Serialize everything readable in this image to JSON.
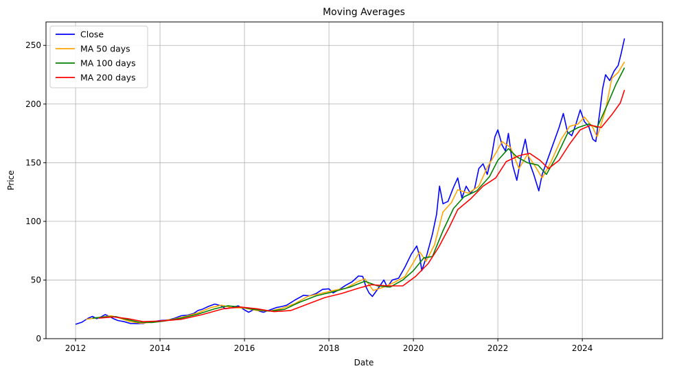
{
  "chart_data": {
    "type": "line",
    "title": "Moving Averages",
    "xlabel": "Date",
    "ylabel": "Price",
    "xlim": [
      2011.3,
      2025.9
    ],
    "ylim": [
      0,
      270
    ],
    "x_ticks": [
      2012,
      2014,
      2016,
      2018,
      2020,
      2022,
      2024
    ],
    "y_ticks": [
      0,
      50,
      100,
      150,
      200,
      250
    ],
    "grid": true,
    "legend": "top-left",
    "series": [
      {
        "name": "Close",
        "color": "#0000ff",
        "points": [
          [
            2012.0,
            12.3
          ],
          [
            2012.15,
            14.0
          ],
          [
            2012.3,
            17.5
          ],
          [
            2012.4,
            19.0
          ],
          [
            2012.5,
            17.0
          ],
          [
            2012.6,
            18.5
          ],
          [
            2012.7,
            20.5
          ],
          [
            2012.8,
            19.0
          ],
          [
            2012.9,
            17.0
          ],
          [
            2013.0,
            15.5
          ],
          [
            2013.15,
            14.5
          ],
          [
            2013.3,
            13.0
          ],
          [
            2013.45,
            12.8
          ],
          [
            2013.6,
            13.0
          ],
          [
            2013.75,
            14.5
          ],
          [
            2013.9,
            14.8
          ],
          [
            2014.0,
            15.5
          ],
          [
            2014.2,
            16.0
          ],
          [
            2014.35,
            17.5
          ],
          [
            2014.5,
            19.5
          ],
          [
            2014.65,
            20.0
          ],
          [
            2014.8,
            21.5
          ],
          [
            2014.9,
            24.0
          ],
          [
            2015.0,
            25.0
          ],
          [
            2015.15,
            27.5
          ],
          [
            2015.3,
            29.5
          ],
          [
            2015.45,
            28.0
          ],
          [
            2015.55,
            25.5
          ],
          [
            2015.7,
            26.5
          ],
          [
            2015.85,
            28.0
          ],
          [
            2016.0,
            24.5
          ],
          [
            2016.1,
            22.5
          ],
          [
            2016.25,
            25.5
          ],
          [
            2016.35,
            23.5
          ],
          [
            2016.45,
            22.5
          ],
          [
            2016.6,
            24.5
          ],
          [
            2016.75,
            26.5
          ],
          [
            2016.9,
            27.5
          ],
          [
            2017.0,
            28.5
          ],
          [
            2017.2,
            33.0
          ],
          [
            2017.4,
            37.0
          ],
          [
            2017.55,
            36.5
          ],
          [
            2017.7,
            38.5
          ],
          [
            2017.85,
            42.0
          ],
          [
            2018.0,
            42.5
          ],
          [
            2018.1,
            39.0
          ],
          [
            2018.25,
            42.0
          ],
          [
            2018.4,
            45.5
          ],
          [
            2018.55,
            48.5
          ],
          [
            2018.7,
            53.5
          ],
          [
            2018.8,
            53.0
          ],
          [
            2018.88,
            44.0
          ],
          [
            2018.95,
            39.0
          ],
          [
            2019.03,
            36.0
          ],
          [
            2019.15,
            42.0
          ],
          [
            2019.3,
            50.0
          ],
          [
            2019.38,
            44.0
          ],
          [
            2019.5,
            50.0
          ],
          [
            2019.65,
            51.5
          ],
          [
            2019.8,
            61.0
          ],
          [
            2019.95,
            72.0
          ],
          [
            2020.08,
            79.0
          ],
          [
            2020.15,
            70.0
          ],
          [
            2020.2,
            58.0
          ],
          [
            2020.3,
            69.0
          ],
          [
            2020.45,
            89.0
          ],
          [
            2020.55,
            106.0
          ],
          [
            2020.62,
            130.0
          ],
          [
            2020.7,
            115.0
          ],
          [
            2020.82,
            117.0
          ],
          [
            2020.95,
            129.0
          ],
          [
            2021.05,
            137.0
          ],
          [
            2021.15,
            120.0
          ],
          [
            2021.25,
            130.0
          ],
          [
            2021.35,
            124.0
          ],
          [
            2021.45,
            128.0
          ],
          [
            2021.55,
            145.0
          ],
          [
            2021.65,
            149.0
          ],
          [
            2021.75,
            140.0
          ],
          [
            2021.85,
            155.0
          ],
          [
            2021.93,
            172.0
          ],
          [
            2022.0,
            178.0
          ],
          [
            2022.1,
            165.0
          ],
          [
            2022.18,
            160.0
          ],
          [
            2022.25,
            175.0
          ],
          [
            2022.35,
            148.0
          ],
          [
            2022.45,
            135.0
          ],
          [
            2022.55,
            155.0
          ],
          [
            2022.65,
            170.0
          ],
          [
            2022.75,
            150.0
          ],
          [
            2022.85,
            140.0
          ],
          [
            2022.97,
            126.0
          ],
          [
            2023.05,
            140.0
          ],
          [
            2023.15,
            150.0
          ],
          [
            2023.3,
            165.0
          ],
          [
            2023.45,
            180.0
          ],
          [
            2023.55,
            192.0
          ],
          [
            2023.65,
            176.0
          ],
          [
            2023.75,
            173.0
          ],
          [
            2023.85,
            183.0
          ],
          [
            2023.95,
            195.0
          ],
          [
            2024.05,
            185.0
          ],
          [
            2024.15,
            181.0
          ],
          [
            2024.25,
            170.0
          ],
          [
            2024.32,
            168.0
          ],
          [
            2024.42,
            195.0
          ],
          [
            2024.48,
            213.0
          ],
          [
            2024.55,
            225.0
          ],
          [
            2024.65,
            220.0
          ],
          [
            2024.75,
            228.0
          ],
          [
            2024.85,
            233.0
          ],
          [
            2024.92,
            243.0
          ],
          [
            2025.0,
            256.0
          ]
        ]
      },
      {
        "name": "MA 50 days",
        "color": "#ffa500",
        "points": [
          [
            2012.25,
            16.5
          ],
          [
            2012.45,
            17.5
          ],
          [
            2012.65,
            18.5
          ],
          [
            2012.85,
            19.5
          ],
          [
            2013.05,
            17.5
          ],
          [
            2013.3,
            14.5
          ],
          [
            2013.55,
            13.2
          ],
          [
            2013.8,
            14.0
          ],
          [
            2014.0,
            15.0
          ],
          [
            2014.3,
            16.5
          ],
          [
            2014.6,
            19.0
          ],
          [
            2014.9,
            22.0
          ],
          [
            2015.2,
            26.5
          ],
          [
            2015.45,
            28.5
          ],
          [
            2015.7,
            26.5
          ],
          [
            2016.0,
            26.0
          ],
          [
            2016.3,
            24.0
          ],
          [
            2016.6,
            23.5
          ],
          [
            2016.9,
            26.0
          ],
          [
            2017.2,
            30.0
          ],
          [
            2017.5,
            36.0
          ],
          [
            2017.8,
            38.5
          ],
          [
            2018.1,
            41.0
          ],
          [
            2018.4,
            43.0
          ],
          [
            2018.65,
            48.0
          ],
          [
            2018.85,
            51.0
          ],
          [
            2019.05,
            41.0
          ],
          [
            2019.3,
            44.0
          ],
          [
            2019.55,
            48.0
          ],
          [
            2019.8,
            53.0
          ],
          [
            2020.0,
            65.0
          ],
          [
            2020.15,
            74.0
          ],
          [
            2020.3,
            66.0
          ],
          [
            2020.5,
            80.0
          ],
          [
            2020.7,
            108.0
          ],
          [
            2020.9,
            116.0
          ],
          [
            2021.05,
            127.0
          ],
          [
            2021.3,
            124.0
          ],
          [
            2021.55,
            130.0
          ],
          [
            2021.75,
            146.0
          ],
          [
            2021.95,
            158.0
          ],
          [
            2022.1,
            168.0
          ],
          [
            2022.3,
            163.0
          ],
          [
            2022.5,
            145.0
          ],
          [
            2022.7,
            157.0
          ],
          [
            2022.9,
            146.0
          ],
          [
            2023.05,
            137.0
          ],
          [
            2023.25,
            150.0
          ],
          [
            2023.5,
            170.0
          ],
          [
            2023.7,
            181.0
          ],
          [
            2023.9,
            183.0
          ],
          [
            2024.05,
            189.0
          ],
          [
            2024.25,
            180.0
          ],
          [
            2024.35,
            172.0
          ],
          [
            2024.55,
            195.0
          ],
          [
            2024.7,
            222.0
          ],
          [
            2024.85,
            227.0
          ],
          [
            2025.0,
            236.0
          ]
        ]
      },
      {
        "name": "MA 100 days",
        "color": "#008000",
        "points": [
          [
            2012.4,
            17.5
          ],
          [
            2012.7,
            18.5
          ],
          [
            2012.95,
            18.8
          ],
          [
            2013.2,
            16.5
          ],
          [
            2013.5,
            14.0
          ],
          [
            2013.8,
            13.8
          ],
          [
            2014.1,
            15.0
          ],
          [
            2014.5,
            17.5
          ],
          [
            2014.9,
            21.0
          ],
          [
            2015.3,
            25.5
          ],
          [
            2015.6,
            28.0
          ],
          [
            2015.9,
            27.0
          ],
          [
            2016.2,
            25.0
          ],
          [
            2016.6,
            23.5
          ],
          [
            2016.95,
            25.0
          ],
          [
            2017.3,
            31.0
          ],
          [
            2017.7,
            36.5
          ],
          [
            2018.1,
            40.0
          ],
          [
            2018.5,
            44.0
          ],
          [
            2018.85,
            49.0
          ],
          [
            2019.15,
            45.0
          ],
          [
            2019.45,
            44.0
          ],
          [
            2019.75,
            50.0
          ],
          [
            2020.0,
            58.0
          ],
          [
            2020.25,
            69.0
          ],
          [
            2020.45,
            70.0
          ],
          [
            2020.7,
            92.0
          ],
          [
            2020.95,
            111.0
          ],
          [
            2021.2,
            121.0
          ],
          [
            2021.5,
            126.0
          ],
          [
            2021.8,
            138.0
          ],
          [
            2022.0,
            152.0
          ],
          [
            2022.25,
            162.0
          ],
          [
            2022.45,
            155.0
          ],
          [
            2022.7,
            150.0
          ],
          [
            2022.95,
            148.0
          ],
          [
            2023.15,
            140.0
          ],
          [
            2023.4,
            156.0
          ],
          [
            2023.65,
            175.0
          ],
          [
            2023.9,
            180.0
          ],
          [
            2024.15,
            183.0
          ],
          [
            2024.35,
            180.0
          ],
          [
            2024.6,
            200.0
          ],
          [
            2024.8,
            217.0
          ],
          [
            2025.0,
            231.0
          ]
        ]
      },
      {
        "name": "MA 200 days",
        "color": "#ff0000",
        "points": [
          [
            2012.55,
            17.5
          ],
          [
            2012.9,
            18.5
          ],
          [
            2013.25,
            17.0
          ],
          [
            2013.6,
            14.5
          ],
          [
            2014.0,
            15.0
          ],
          [
            2014.5,
            16.5
          ],
          [
            2015.0,
            20.5
          ],
          [
            2015.5,
            25.5
          ],
          [
            2015.9,
            27.0
          ],
          [
            2016.3,
            25.5
          ],
          [
            2016.7,
            23.0
          ],
          [
            2017.1,
            24.0
          ],
          [
            2017.5,
            29.5
          ],
          [
            2017.9,
            35.0
          ],
          [
            2018.3,
            38.5
          ],
          [
            2018.7,
            43.0
          ],
          [
            2019.0,
            46.0
          ],
          [
            2019.4,
            45.0
          ],
          [
            2019.75,
            45.0
          ],
          [
            2020.05,
            53.0
          ],
          [
            2020.35,
            64.0
          ],
          [
            2020.6,
            78.0
          ],
          [
            2020.85,
            95.0
          ],
          [
            2021.05,
            110.0
          ],
          [
            2021.35,
            119.0
          ],
          [
            2021.65,
            130.0
          ],
          [
            2021.95,
            137.0
          ],
          [
            2022.2,
            151.0
          ],
          [
            2022.5,
            156.0
          ],
          [
            2022.75,
            158.0
          ],
          [
            2023.0,
            152.0
          ],
          [
            2023.2,
            145.0
          ],
          [
            2023.45,
            152.0
          ],
          [
            2023.7,
            166.0
          ],
          [
            2023.95,
            178.0
          ],
          [
            2024.2,
            182.0
          ],
          [
            2024.45,
            180.0
          ],
          [
            2024.7,
            191.0
          ],
          [
            2024.9,
            201.0
          ],
          [
            2025.0,
            212.0
          ]
        ]
      }
    ]
  }
}
